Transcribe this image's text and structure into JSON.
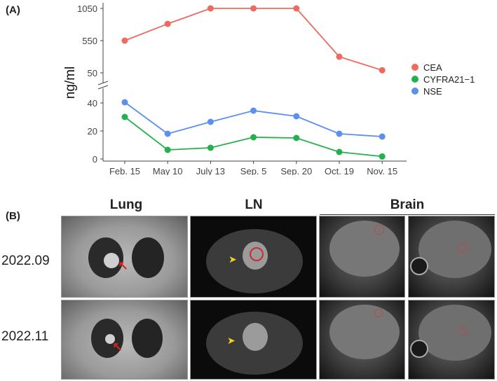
{
  "panel_a_label": "(A)",
  "panel_b_label": "(B)",
  "chart_data": {
    "type": "line",
    "categories": [
      "Feb. 15",
      "May 10",
      "July 13",
      "Sep. 5",
      "Sep. 20",
      "Oct. 19",
      "Nov. 15"
    ],
    "ylabel": "ng/ml",
    "y_axis_break": true,
    "upper_segment": {
      "ylim": [
        0,
        1100
      ],
      "ticks": [
        50,
        550,
        1050
      ]
    },
    "lower_segment": {
      "ylim": [
        0,
        45
      ],
      "ticks": [
        0,
        20,
        40
      ]
    },
    "legend_position": "right",
    "series": [
      {
        "name": "CEA",
        "color": "#ee6a5f",
        "segment": "upper",
        "values": [
          550,
          810,
          1050,
          1050,
          1050,
          300,
          90
        ]
      },
      {
        "name": "CYFRA21−1",
        "color": "#23b14d",
        "segment": "lower",
        "values": [
          30,
          6.5,
          8,
          15.5,
          15,
          5,
          1.8
        ]
      },
      {
        "name": "NSE",
        "color": "#5b8ff0",
        "segment": "lower",
        "values": [
          40.5,
          18,
          26.5,
          34.5,
          30.5,
          18,
          16
        ]
      }
    ]
  },
  "images": {
    "columns": [
      "Lung",
      "LN",
      "Brain"
    ],
    "rows": [
      "2022.09",
      "2022.11"
    ]
  }
}
